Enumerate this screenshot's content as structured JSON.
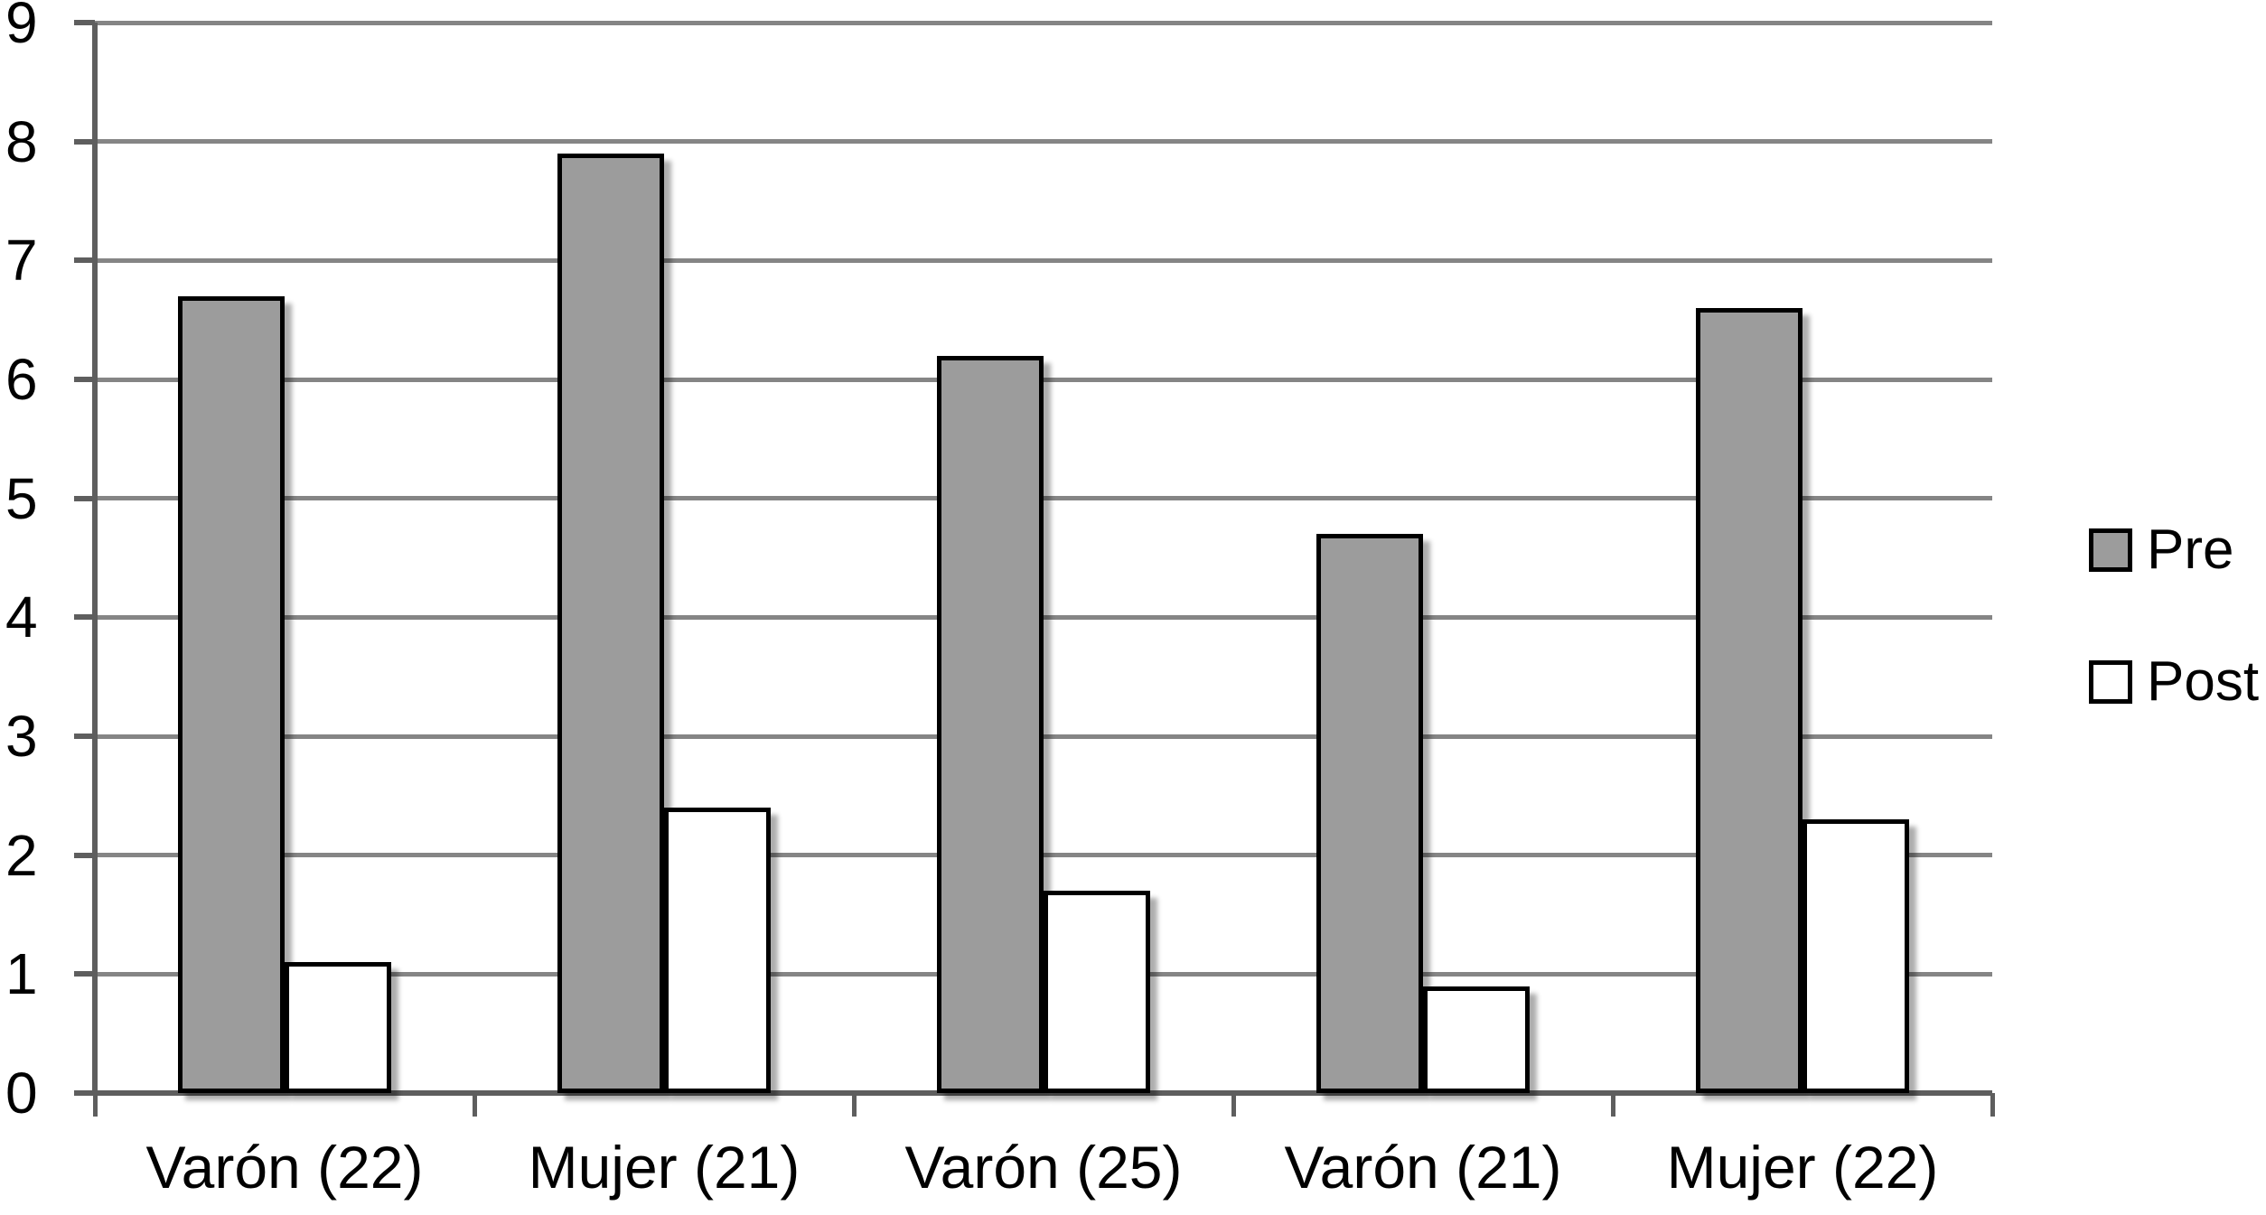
{
  "chart_data": {
    "type": "bar",
    "title": "",
    "xlabel": "",
    "ylabel": "",
    "categories": [
      "Varón (22)",
      "Mujer (21)",
      "Varón (25)",
      "Varón (21)",
      "Mujer (22)"
    ],
    "series": [
      {
        "name": "Pre",
        "fill": "#9C9C9C",
        "values": [
          6.7,
          7.9,
          6.2,
          4.7,
          6.6
        ]
      },
      {
        "name": "Post",
        "fill": "#FFFFFF",
        "values": [
          1.1,
          2.4,
          1.7,
          0.9,
          2.3
        ]
      }
    ],
    "ylim": [
      0,
      9
    ],
    "ytick_step": 1,
    "ytick_labels": [
      "0",
      "1",
      "2",
      "3",
      "4",
      "5",
      "6",
      "7",
      "8",
      "9"
    ],
    "grid": true,
    "legend_position": "right"
  },
  "colors": {
    "background": "#FFFFFF",
    "bar_border": "#000000",
    "pre_fill": "#9C9C9C",
    "post_fill": "#FFFFFF",
    "gridline": "#858585",
    "axis": "#5E5E5E",
    "text": "#000000"
  }
}
